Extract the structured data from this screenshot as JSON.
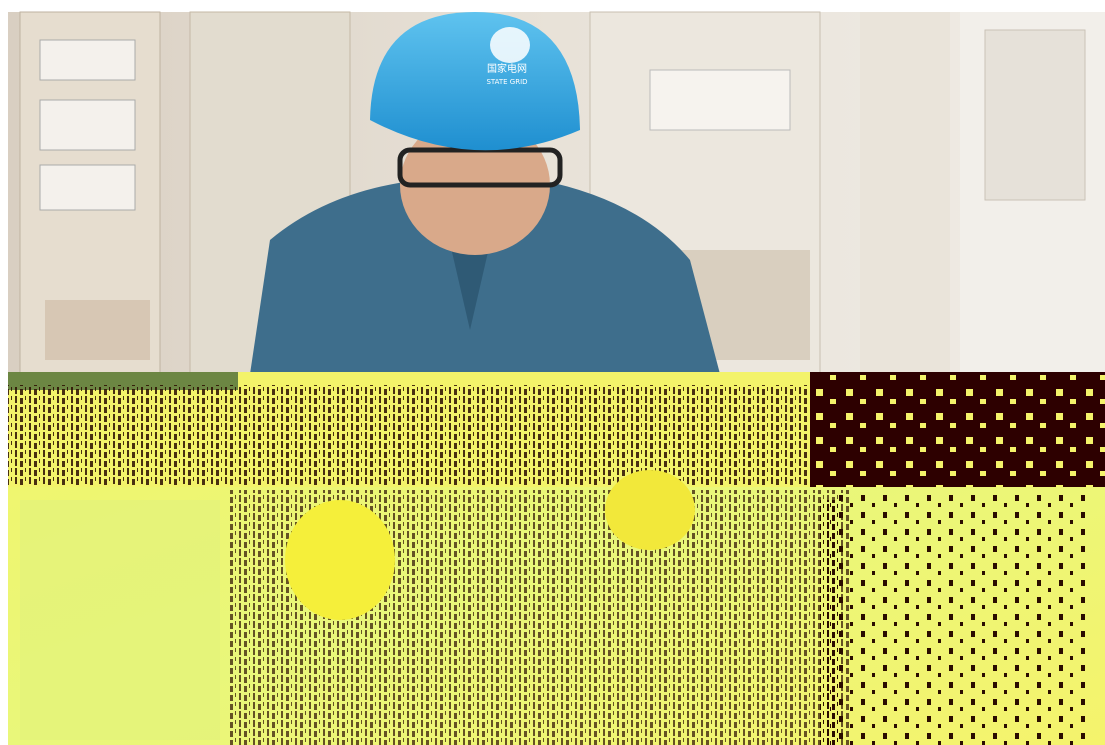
{
  "photo": {
    "helmet_logo": {
      "text_cn": "国家电网",
      "text_en": "STATE GRID"
    }
  }
}
